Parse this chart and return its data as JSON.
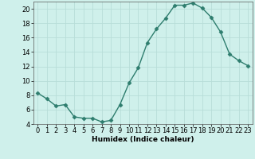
{
  "x": [
    0,
    1,
    2,
    3,
    4,
    5,
    6,
    7,
    8,
    9,
    10,
    11,
    12,
    13,
    14,
    15,
    16,
    17,
    18,
    19,
    20,
    21,
    22,
    23
  ],
  "y": [
    8.3,
    7.5,
    6.5,
    6.7,
    5.0,
    4.8,
    4.8,
    4.3,
    4.5,
    6.7,
    9.7,
    11.8,
    15.3,
    17.2,
    18.7,
    20.5,
    20.5,
    20.8,
    20.1,
    18.8,
    16.8,
    13.7,
    12.8,
    12.1
  ],
  "line_color": "#2e7d6e",
  "marker": "D",
  "markersize": 2.5,
  "linewidth": 1.0,
  "bg_color": "#cff0eb",
  "grid_color": "#b8ddd8",
  "xlabel": "Humidex (Indice chaleur)",
  "xlim": [
    -0.5,
    23.5
  ],
  "ylim": [
    4,
    21
  ],
  "yticks": [
    4,
    6,
    8,
    10,
    12,
    14,
    16,
    18,
    20
  ],
  "xticks": [
    0,
    1,
    2,
    3,
    4,
    5,
    6,
    7,
    8,
    9,
    10,
    11,
    12,
    13,
    14,
    15,
    16,
    17,
    18,
    19,
    20,
    21,
    22,
    23
  ],
  "label_fontsize": 6.5,
  "tick_fontsize": 6
}
